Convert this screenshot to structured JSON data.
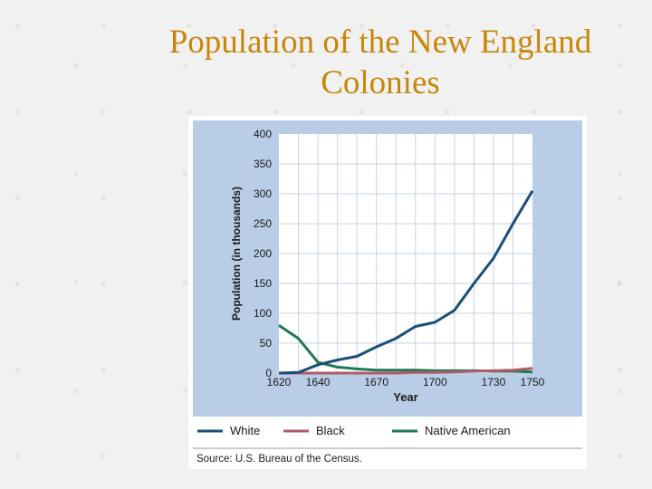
{
  "slide": {
    "title_line1": "Population of the New England",
    "title_line2": "Colonies"
  },
  "chart_data": {
    "type": "line",
    "title": "",
    "xlabel": "Year",
    "ylabel": "Population (in thousands)",
    "xlim": [
      1620,
      1750
    ],
    "ylim": [
      0,
      400
    ],
    "x_ticks": [
      1620,
      1640,
      1670,
      1700,
      1730,
      1750
    ],
    "y_ticks": [
      0,
      50,
      100,
      150,
      200,
      250,
      300,
      350,
      400
    ],
    "grid": true,
    "legend_position": "bottom",
    "source": "Source: U.S. Bureau of the Census.",
    "series": [
      {
        "name": "White",
        "color": "#1a4f7a",
        "points": [
          [
            1620,
            0
          ],
          [
            1630,
            1
          ],
          [
            1640,
            14
          ],
          [
            1650,
            22
          ],
          [
            1660,
            28
          ],
          [
            1670,
            44
          ],
          [
            1680,
            58
          ],
          [
            1690,
            78
          ],
          [
            1700,
            85
          ],
          [
            1710,
            105
          ],
          [
            1720,
            150
          ],
          [
            1730,
            192
          ],
          [
            1740,
            250
          ],
          [
            1750,
            305
          ]
        ]
      },
      {
        "name": "Black",
        "color": "#b05a6a",
        "points": [
          [
            1620,
            0
          ],
          [
            1630,
            0
          ],
          [
            1640,
            0
          ],
          [
            1650,
            0
          ],
          [
            1660,
            0
          ],
          [
            1670,
            0
          ],
          [
            1680,
            0
          ],
          [
            1690,
            1
          ],
          [
            1700,
            1
          ],
          [
            1710,
            2
          ],
          [
            1720,
            3
          ],
          [
            1730,
            4
          ],
          [
            1740,
            5
          ],
          [
            1750,
            8
          ]
        ]
      },
      {
        "name": "Native American",
        "color": "#1e7a52",
        "points": [
          [
            1620,
            80
          ],
          [
            1630,
            58
          ],
          [
            1640,
            18
          ],
          [
            1650,
            10
          ],
          [
            1660,
            7
          ],
          [
            1670,
            5
          ],
          [
            1680,
            5
          ],
          [
            1690,
            5
          ],
          [
            1700,
            4
          ],
          [
            1710,
            4
          ],
          [
            1720,
            4
          ],
          [
            1730,
            3
          ],
          [
            1740,
            3
          ],
          [
            1750,
            2
          ]
        ]
      }
    ]
  }
}
